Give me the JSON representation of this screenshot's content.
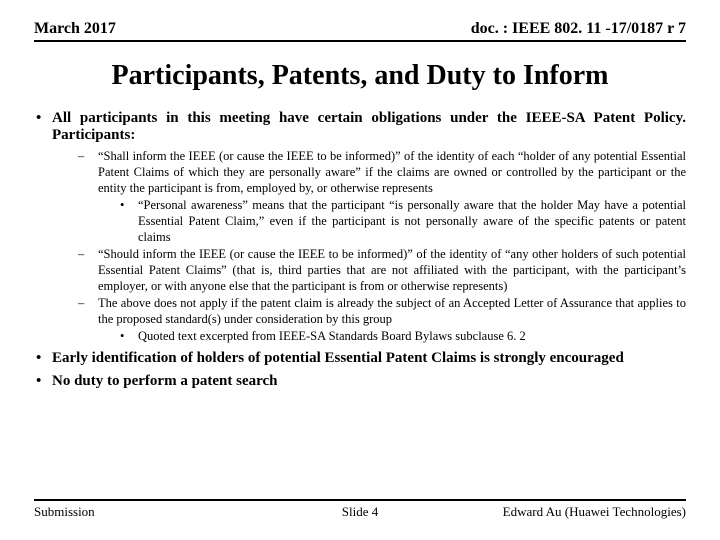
{
  "header": {
    "left": "March 2017",
    "right": "doc. : IEEE 802. 11 -17/0187 r 7"
  },
  "title": "Participants, Patents, and Duty to Inform",
  "bullets": {
    "b1": "All participants in this meeting have certain obligations under the IEEE-SA Patent Policy.  Participants:",
    "b1_1": "“Shall inform the IEEE (or cause the IEEE to be informed)” of the identity of each “holder of any potential Essential Patent Claims of which they are personally aware” if the claims are owned or controlled by the participant or the entity the participant is from, employed by, or otherwise represents",
    "b1_1_1": "“Personal awareness” means that the participant “is personally aware that the holder May have a potential Essential Patent Claim,” even if the participant is not personally aware of the specific patents or patent claims",
    "b1_2": "“Should inform the IEEE (or cause the IEEE to be informed)” of the identity of “any other holders of such potential Essential Patent Claims” (that is, third parties that are not affiliated with the participant, with the participant’s employer, or with anyone else that the participant is from or otherwise represents)",
    "b1_3": "The above does not apply if the patent claim is already the subject of an Accepted Letter of Assurance that applies to the proposed standard(s) under consideration by this group",
    "b1_3_1": "Quoted text excerpted from IEEE-SA Standards Board Bylaws subclause 6. 2",
    "b2": "Early identification of holders of potential Essential Patent Claims is strongly encouraged",
    "b3": "No duty to perform a patent search"
  },
  "footer": {
    "left": "Submission",
    "center": "Slide 4",
    "right": "Edward Au (Huawei Technologies)"
  }
}
